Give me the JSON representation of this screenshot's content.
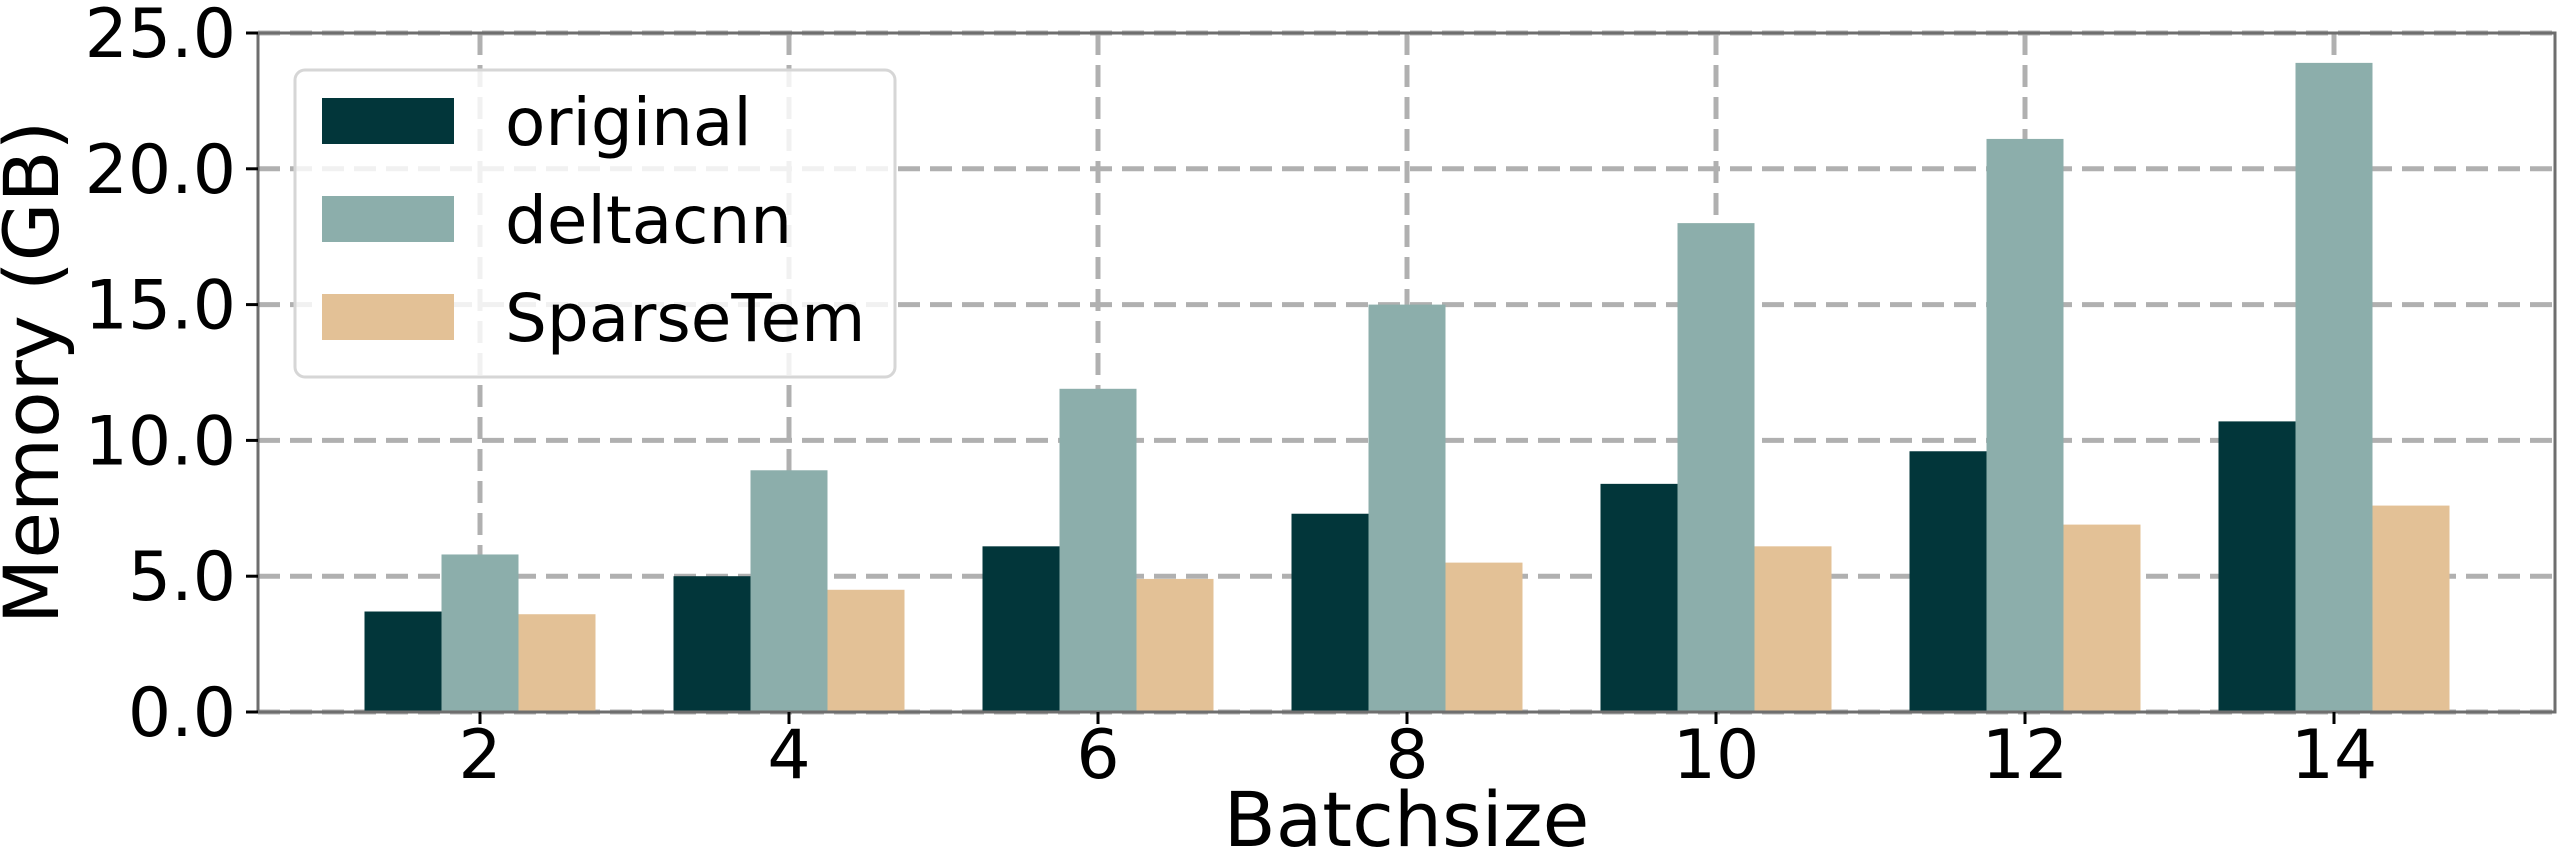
{
  "chart_data": {
    "type": "bar",
    "title": "",
    "xlabel": "Batchsize",
    "ylabel": "Memory (GB)",
    "categories": [
      "2",
      "4",
      "6",
      "8",
      "10",
      "12",
      "14"
    ],
    "ylim": [
      0,
      25
    ],
    "yticks": [
      "0.0",
      "5.0",
      "10.0",
      "15.0",
      "20.0",
      "25.0"
    ],
    "grid": true,
    "legend_position": "top-left",
    "series": [
      {
        "name": "original",
        "color": "#02363a",
        "values": [
          3.7,
          5.0,
          6.1,
          7.3,
          8.4,
          9.6,
          10.7
        ]
      },
      {
        "name": "deltacnn",
        "color": "#8caeab",
        "values": [
          5.8,
          8.9,
          11.9,
          15.0,
          18.0,
          21.1,
          23.9
        ]
      },
      {
        "name": "SparseTem",
        "color": "#e3c196",
        "values": [
          3.6,
          4.5,
          4.9,
          5.5,
          6.1,
          6.9,
          7.6
        ]
      }
    ]
  }
}
